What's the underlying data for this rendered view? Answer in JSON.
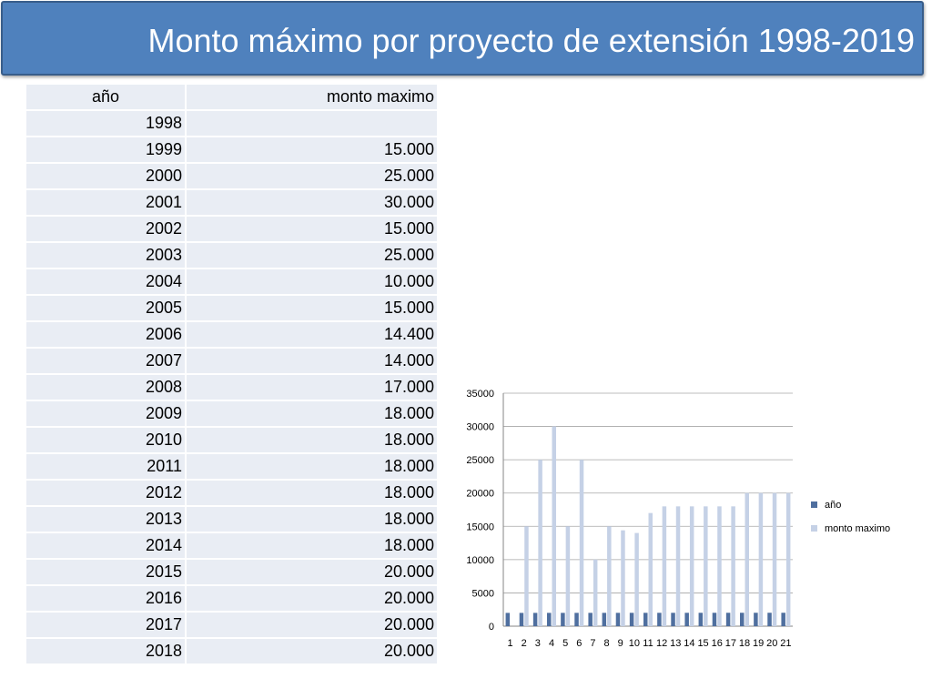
{
  "title": "Monto máximo por proyecto de extensión 1998-2019",
  "table": {
    "headers": [
      "año",
      "monto maximo"
    ],
    "rows": [
      [
        "1998",
        ""
      ],
      [
        "1999",
        "15.000"
      ],
      [
        "2000",
        "25.000"
      ],
      [
        "2001",
        "30.000"
      ],
      [
        "2002",
        "15.000"
      ],
      [
        "2003",
        "25.000"
      ],
      [
        "2004",
        "10.000"
      ],
      [
        "2005",
        "15.000"
      ],
      [
        "2006",
        "14.400"
      ],
      [
        "2007",
        "14.000"
      ],
      [
        "2008",
        "17.000"
      ],
      [
        "2009",
        "18.000"
      ],
      [
        "2010",
        "18.000"
      ],
      [
        "2011",
        "18.000"
      ],
      [
        "2012",
        "18.000"
      ],
      [
        "2013",
        "18.000"
      ],
      [
        "2014",
        "18.000"
      ],
      [
        "2015",
        "20.000"
      ],
      [
        "2016",
        "20.000"
      ],
      [
        "2017",
        "20.000"
      ],
      [
        "2018",
        "20.000"
      ]
    ]
  },
  "chart_data": {
    "type": "bar",
    "categories": [
      "1",
      "2",
      "3",
      "4",
      "5",
      "6",
      "7",
      "8",
      "9",
      "10",
      "11",
      "12",
      "13",
      "14",
      "15",
      "16",
      "17",
      "18",
      "19",
      "20",
      "21"
    ],
    "series": [
      {
        "name": "año",
        "color": "#4f6f9f",
        "values": [
          1998,
          1999,
          2000,
          2001,
          2002,
          2003,
          2004,
          2005,
          2006,
          2007,
          2008,
          2009,
          2010,
          2011,
          2012,
          2013,
          2014,
          2015,
          2016,
          2017,
          2018
        ]
      },
      {
        "name": "monto maximo",
        "color": "#c5d1e6",
        "values": [
          0,
          15000,
          25000,
          30000,
          15000,
          25000,
          10000,
          15000,
          14400,
          14000,
          17000,
          18000,
          18000,
          18000,
          18000,
          18000,
          18000,
          20000,
          20000,
          20000,
          20000
        ]
      }
    ],
    "ylim": [
      0,
      35000
    ],
    "yticks": [
      0,
      5000,
      10000,
      15000,
      20000,
      25000,
      30000,
      35000
    ],
    "grid": true,
    "legend": "right"
  }
}
